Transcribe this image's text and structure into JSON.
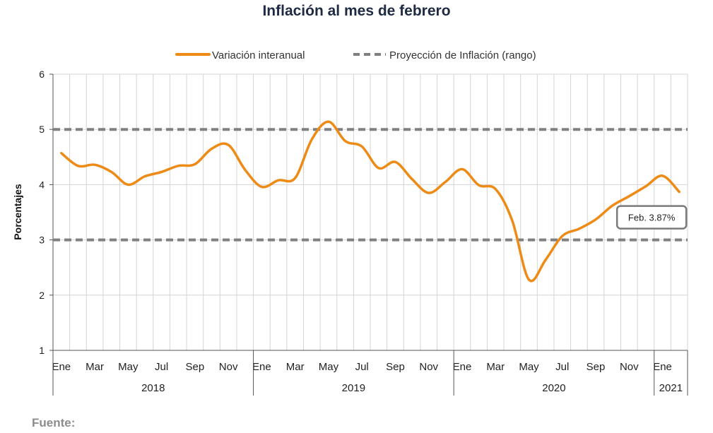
{
  "chart_data": {
    "type": "line",
    "title": "Inflación al mes de febrero",
    "ylabel": "Porcentajes",
    "xlabel": "",
    "ylim": [
      1,
      6
    ],
    "yticks": [
      1,
      2,
      3,
      4,
      5,
      6
    ],
    "grid": true,
    "legend_position": "top",
    "month_labels": [
      "Ene",
      "",
      "Mar",
      "",
      "May",
      "",
      "Jul",
      "",
      "Sep",
      "",
      "Nov",
      "",
      "Ene",
      "",
      "Mar",
      "",
      "May",
      "",
      "Jul",
      "",
      "Sep",
      "",
      "Nov",
      "",
      "Ene",
      "",
      "Mar",
      "",
      "May",
      "",
      "Jul",
      "",
      "Sep",
      "",
      "Nov",
      "",
      "Ene",
      ""
    ],
    "years": [
      {
        "label": "2018",
        "months": 12
      },
      {
        "label": "2019",
        "months": 12
      },
      {
        "label": "2020",
        "months": 12
      },
      {
        "label": "2021",
        "months": 2
      }
    ],
    "series": [
      {
        "name": "Variación interanual",
        "color": "#ee8a16",
        "style": "solid",
        "values": [
          4.57,
          4.34,
          4.36,
          4.23,
          4.0,
          4.15,
          4.23,
          4.34,
          4.37,
          4.65,
          4.72,
          4.27,
          3.96,
          4.08,
          4.12,
          4.82,
          5.14,
          4.79,
          4.69,
          4.3,
          4.41,
          4.1,
          3.85,
          4.05,
          4.28,
          3.99,
          3.92,
          3.35,
          2.28,
          2.64,
          3.07,
          3.2,
          3.37,
          3.62,
          3.79,
          3.97,
          4.16,
          3.87
        ]
      },
      {
        "name": "Proyección de Inflación (rango)",
        "color": "#808080",
        "style": "dashed",
        "lines": [
          3,
          5
        ]
      }
    ],
    "annotations": [
      {
        "text": "Feb. 3.87%",
        "x_index": 37,
        "value": 3.87
      }
    ]
  },
  "footer": {
    "source_label": "Fuente:"
  }
}
